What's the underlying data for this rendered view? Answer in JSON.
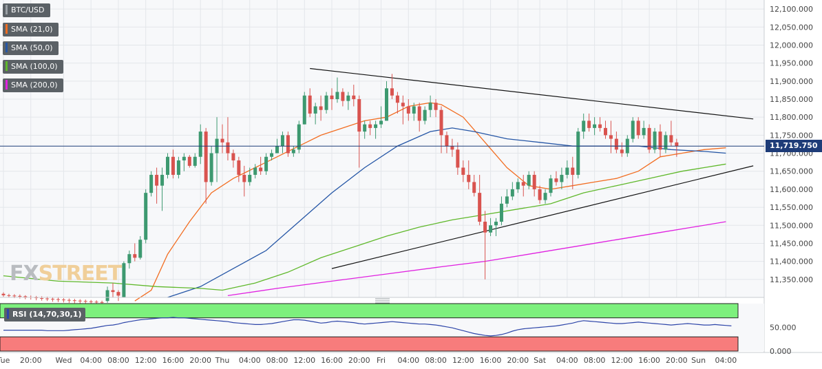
{
  "chart_data": {
    "type": "candlestick",
    "symbol": "BTC/USD",
    "indicators": [
      {
        "label": "SMA (21,0)",
        "color": "#f26d21"
      },
      {
        "label": "SMA (50,0)",
        "color": "#2556a6"
      },
      {
        "label": "SMA (100,0)",
        "color": "#5fb82a"
      },
      {
        "label": "SMA (200,0)",
        "color": "#e020e0"
      }
    ],
    "y_range": [
      11300,
      12125
    ],
    "y_ticks": [
      12100,
      12050,
      12000,
      11950,
      11900,
      11850,
      11800,
      11750,
      11700,
      11650,
      11600,
      11550,
      11500,
      11450,
      11400,
      11350
    ],
    "y_tick_labels": [
      "12,100.000",
      "12,050.000",
      "12,000.000",
      "11,950.000",
      "11,900.000",
      "11,850.000",
      "11,800.000",
      "11,750.000",
      "11,700.000",
      "11,650.000",
      "11,600.000",
      "11,550.000",
      "11,500.000",
      "11,450.000",
      "11,400.000",
      "11,350.000"
    ],
    "last_price": 11719.75,
    "last_price_label": "11,719.750",
    "x_tick_labels": [
      "Tue",
      "20:00",
      "Wed",
      "04:00",
      "08:00",
      "12:00",
      "16:00",
      "20:00",
      "Thu",
      "04:00",
      "08:00",
      "12:00",
      "16:00",
      "20:00",
      "Fri",
      "04:00",
      "08:00",
      "12:00",
      "16:00",
      "20:00",
      "Sat",
      "04:00",
      "08:00",
      "12:00",
      "16:00",
      "20:00",
      "Sun",
      "04:00"
    ],
    "x_tick_index": [
      0,
      5,
      11,
      16,
      21,
      26,
      31,
      36,
      40,
      45,
      50,
      55,
      60,
      65,
      69,
      74,
      79,
      84,
      89,
      94,
      98,
      103,
      108,
      113,
      118,
      123,
      127,
      132
    ],
    "candles": [
      [
        11310,
        11314,
        11302,
        11306
      ],
      [
        11306,
        11310,
        11300,
        11305
      ],
      [
        11305,
        11309,
        11298,
        11304
      ],
      [
        11304,
        11308,
        11297,
        11303
      ],
      [
        11303,
        11306,
        11295,
        11301
      ],
      [
        11301,
        11305,
        11294,
        11300
      ],
      [
        11300,
        11304,
        11292,
        11298
      ],
      [
        11298,
        11303,
        11291,
        11297
      ],
      [
        11297,
        11302,
        11290,
        11296
      ],
      [
        11296,
        11300,
        11288,
        11295
      ],
      [
        11295,
        11299,
        11287,
        11294
      ],
      [
        11294,
        11298,
        11286,
        11293
      ],
      [
        11293,
        11297,
        11285,
        11292
      ],
      [
        11292,
        11296,
        11284,
        11291
      ],
      [
        11291,
        11295,
        11283,
        11290
      ],
      [
        11290,
        11294,
        11282,
        11289
      ],
      [
        11289,
        11293,
        11281,
        11288
      ],
      [
        11288,
        11292,
        11280,
        11287
      ],
      [
        11287,
        11291,
        11279,
        11286
      ],
      [
        11290,
        11330,
        11285,
        11320
      ],
      [
        11320,
        11340,
        11300,
        11315
      ],
      [
        11315,
        11320,
        11290,
        11305
      ],
      [
        11300,
        11400,
        11300,
        11395
      ],
      [
        11395,
        11430,
        11380,
        11420
      ],
      [
        11420,
        11450,
        11400,
        11410
      ],
      [
        11410,
        11470,
        11405,
        11460
      ],
      [
        11460,
        11600,
        11450,
        11590
      ],
      [
        11590,
        11650,
        11580,
        11640
      ],
      [
        11640,
        11660,
        11560,
        11610
      ],
      [
        11610,
        11660,
        11540,
        11640
      ],
      [
        11640,
        11700,
        11630,
        11690
      ],
      [
        11690,
        11710,
        11630,
        11640
      ],
      [
        11640,
        11690,
        11630,
        11680
      ],
      [
        11680,
        11700,
        11650,
        11690
      ],
      [
        11690,
        11695,
        11660,
        11665
      ],
      [
        11665,
        11700,
        11660,
        11690
      ],
      [
        11690,
        11780,
        11670,
        11760
      ],
      [
        11760,
        11770,
        11560,
        11620
      ],
      [
        11620,
        11720,
        11610,
        11700
      ],
      [
        11700,
        11800,
        11620,
        11740
      ],
      [
        11740,
        11780,
        11700,
        11730
      ],
      [
        11730,
        11800,
        11680,
        11700
      ],
      [
        11700,
        11710,
        11660,
        11680
      ],
      [
        11680,
        11690,
        11620,
        11640
      ],
      [
        11640,
        11665,
        11580,
        11620
      ],
      [
        11620,
        11660,
        11610,
        11640
      ],
      [
        11640,
        11670,
        11630,
        11660
      ],
      [
        11660,
        11690,
        11640,
        11650
      ],
      [
        11650,
        11700,
        11640,
        11690
      ],
      [
        11690,
        11710,
        11680,
        11700
      ],
      [
        11700,
        11740,
        11700,
        11720
      ],
      [
        11720,
        11760,
        11700,
        11750
      ],
      [
        11750,
        11760,
        11690,
        11700
      ],
      [
        11700,
        11720,
        11690,
        11710
      ],
      [
        11710,
        11790,
        11700,
        11780
      ],
      [
        11780,
        11870,
        11780,
        11860
      ],
      [
        11860,
        11880,
        11800,
        11810
      ],
      [
        11810,
        11840,
        11780,
        11830
      ],
      [
        11830,
        11860,
        11790,
        11820
      ],
      [
        11820,
        11870,
        11810,
        11860
      ],
      [
        11860,
        11880,
        11820,
        11850
      ],
      [
        11850,
        11910,
        11840,
        11870
      ],
      [
        11870,
        11880,
        11830,
        11845
      ],
      [
        11845,
        11870,
        11820,
        11860
      ],
      [
        11860,
        11890,
        11830,
        11850
      ],
      [
        11850,
        11860,
        11660,
        11760
      ],
      [
        11760,
        11790,
        11740,
        11780
      ],
      [
        11780,
        11790,
        11750,
        11770
      ],
      [
        11770,
        11790,
        11740,
        11780
      ],
      [
        11780,
        11830,
        11770,
        11790
      ],
      [
        11790,
        11900,
        11790,
        11880
      ],
      [
        11880,
        11920,
        11850,
        11860
      ],
      [
        11860,
        11870,
        11810,
        11840
      ],
      [
        11840,
        11860,
        11780,
        11830
      ],
      [
        11830,
        11850,
        11790,
        11810
      ],
      [
        11810,
        11840,
        11790,
        11830
      ],
      [
        11830,
        11840,
        11760,
        11790
      ],
      [
        11790,
        11830,
        11780,
        11820
      ],
      [
        11820,
        11860,
        11800,
        11840
      ],
      [
        11840,
        11850,
        11800,
        11820
      ],
      [
        11820,
        11830,
        11700,
        11750
      ],
      [
        11750,
        11760,
        11700,
        11720
      ],
      [
        11720,
        11740,
        11690,
        11710
      ],
      [
        11710,
        11730,
        11640,
        11660
      ],
      [
        11660,
        11680,
        11620,
        11640
      ],
      [
        11640,
        11680,
        11600,
        11620
      ],
      [
        11620,
        11640,
        11580,
        11590
      ],
      [
        11590,
        11640,
        11500,
        11510
      ],
      [
        11510,
        11540,
        11350,
        11480
      ],
      [
        11480,
        11520,
        11470,
        11500
      ],
      [
        11500,
        11520,
        11470,
        11510
      ],
      [
        11510,
        11580,
        11500,
        11560
      ],
      [
        11560,
        11600,
        11550,
        11580
      ],
      [
        11580,
        11620,
        11570,
        11600
      ],
      [
        11600,
        11630,
        11590,
        11620
      ],
      [
        11620,
        11640,
        11580,
        11610
      ],
      [
        11610,
        11650,
        11600,
        11640
      ],
      [
        11640,
        11650,
        11580,
        11600
      ],
      [
        11600,
        11610,
        11560,
        11570
      ],
      [
        11570,
        11600,
        11560,
        11590
      ],
      [
        11590,
        11640,
        11580,
        11630
      ],
      [
        11630,
        11650,
        11610,
        11620
      ],
      [
        11620,
        11660,
        11600,
        11640
      ],
      [
        11640,
        11680,
        11630,
        11660
      ],
      [
        11660,
        11690,
        11600,
        11640
      ],
      [
        11640,
        11770,
        11630,
        11760
      ],
      [
        11760,
        11810,
        11740,
        11790
      ],
      [
        11790,
        11810,
        11760,
        11770
      ],
      [
        11770,
        11800,
        11750,
        11780
      ],
      [
        11780,
        11800,
        11760,
        11770
      ],
      [
        11770,
        11790,
        11740,
        11750
      ],
      [
        11750,
        11790,
        11700,
        11740
      ],
      [
        11740,
        11760,
        11700,
        11710
      ],
      [
        11710,
        11730,
        11690,
        11700
      ],
      [
        11700,
        11750,
        11690,
        11740
      ],
      [
        11740,
        11800,
        11730,
        11790
      ],
      [
        11790,
        11800,
        11740,
        11750
      ],
      [
        11750,
        11790,
        11740,
        11770
      ],
      [
        11770,
        11780,
        11700,
        11710
      ],
      [
        11710,
        11770,
        11700,
        11760
      ],
      [
        11760,
        11780,
        11690,
        11710
      ],
      [
        11710,
        11760,
        11700,
        11750
      ],
      [
        11750,
        11790,
        11720,
        11730
      ],
      [
        11730,
        11740,
        11690,
        11720
      ]
    ]
  },
  "sma_series": {
    "sma21": [
      [
        24,
        11290
      ],
      [
        27,
        11320
      ],
      [
        30,
        11420
      ],
      [
        34,
        11510
      ],
      [
        38,
        11590
      ],
      [
        42,
        11630
      ],
      [
        46,
        11660
      ],
      [
        50,
        11690
      ],
      [
        54,
        11720
      ],
      [
        58,
        11750
      ],
      [
        62,
        11770
      ],
      [
        66,
        11790
      ],
      [
        70,
        11800
      ],
      [
        74,
        11830
      ],
      [
        78,
        11840
      ],
      [
        80,
        11835
      ],
      [
        84,
        11800
      ],
      [
        88,
        11730
      ],
      [
        92,
        11660
      ],
      [
        96,
        11610
      ],
      [
        100,
        11600
      ],
      [
        104,
        11610
      ],
      [
        108,
        11620
      ],
      [
        112,
        11630
      ],
      [
        116,
        11650
      ],
      [
        120,
        11690
      ],
      [
        124,
        11700
      ],
      [
        128,
        11710
      ],
      [
        132,
        11715
      ]
    ],
    "sma50": [
      [
        30,
        11300
      ],
      [
        36,
        11330
      ],
      [
        42,
        11380
      ],
      [
        48,
        11430
      ],
      [
        54,
        11510
      ],
      [
        60,
        11590
      ],
      [
        66,
        11660
      ],
      [
        72,
        11720
      ],
      [
        78,
        11760
      ],
      [
        82,
        11770
      ],
      [
        86,
        11760
      ],
      [
        92,
        11740
      ],
      [
        98,
        11730
      ],
      [
        104,
        11720
      ],
      [
        110,
        11720
      ],
      [
        116,
        11720
      ],
      [
        122,
        11710
      ],
      [
        128,
        11705
      ],
      [
        132,
        11700
      ]
    ],
    "sma100": [
      [
        0,
        11360
      ],
      [
        10,
        11345
      ],
      [
        20,
        11340
      ],
      [
        28,
        11330
      ],
      [
        36,
        11325
      ],
      [
        40,
        11320
      ],
      [
        46,
        11340
      ],
      [
        52,
        11370
      ],
      [
        58,
        11410
      ],
      [
        64,
        11440
      ],
      [
        70,
        11470
      ],
      [
        76,
        11495
      ],
      [
        82,
        11515
      ],
      [
        88,
        11530
      ],
      [
        94,
        11545
      ],
      [
        100,
        11560
      ],
      [
        106,
        11590
      ],
      [
        112,
        11610
      ],
      [
        118,
        11630
      ],
      [
        124,
        11650
      ],
      [
        128,
        11660
      ],
      [
        132,
        11670
      ]
    ],
    "sma200": [
      [
        41,
        11305
      ],
      [
        50,
        11325
      ],
      [
        60,
        11345
      ],
      [
        70,
        11365
      ],
      [
        80,
        11385
      ],
      [
        88,
        11400
      ],
      [
        96,
        11420
      ],
      [
        104,
        11440
      ],
      [
        112,
        11460
      ],
      [
        120,
        11480
      ],
      [
        126,
        11495
      ],
      [
        132,
        11510
      ]
    ]
  },
  "trendlines": [
    {
      "from": [
        56,
        11935
      ],
      "to": [
        137,
        11795
      ]
    },
    {
      "from": [
        60,
        11380
      ],
      "to": [
        137,
        11665
      ]
    }
  ],
  "rsi": {
    "label": "RSI (14,70,30,1)",
    "upper": 70,
    "lower": 30,
    "y_tick_labels": [
      "50.000",
      "0.000"
    ],
    "values": [
      44,
      44,
      44,
      44,
      44,
      44,
      44,
      44,
      43,
      43,
      43,
      43,
      44,
      45,
      46,
      47,
      48,
      50,
      52,
      54,
      55,
      57,
      60,
      62,
      64,
      66,
      67,
      68,
      69,
      70,
      70,
      71,
      70,
      70,
      69,
      68,
      67,
      66,
      65,
      64,
      63,
      62,
      60,
      59,
      58,
      57,
      56,
      56,
      57,
      58,
      60,
      62,
      64,
      66,
      66,
      65,
      63,
      61,
      59,
      60,
      62,
      63,
      62,
      61,
      60,
      58,
      57,
      58,
      59,
      60,
      61,
      62,
      61,
      60,
      59,
      58,
      57,
      57,
      56,
      55,
      53,
      51,
      49,
      46,
      43,
      40,
      37,
      35,
      33,
      32,
      33,
      35,
      38,
      42,
      45,
      47,
      48,
      49,
      50,
      51,
      52,
      53,
      55,
      57,
      59,
      62,
      64,
      63,
      62,
      61,
      60,
      59,
      58,
      58,
      59,
      60,
      61,
      60,
      59,
      58,
      57,
      56,
      55,
      56,
      57,
      58,
      57,
      56,
      55,
      55,
      56,
      55,
      54,
      53
    ]
  },
  "watermark": {
    "part1": "FX",
    "part2": "STREET"
  }
}
